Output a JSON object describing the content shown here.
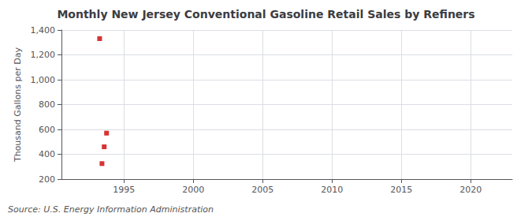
{
  "chart_data": {
    "type": "scatter",
    "title": "Monthly New Jersey Conventional Gasoline Retail Sales by Refiners",
    "ylabel": "Thousand Gallons per Day",
    "annotations": [
      "Source: U.S. Energy Information Administration"
    ],
    "x": [
      1993.25,
      1993.75,
      1993.58,
      1993.42
    ],
    "values": [
      1330,
      570,
      460,
      325
    ],
    "color": "#cc0000",
    "marker": "square",
    "xlim": [
      1990.5,
      2023
    ],
    "ylim": [
      200,
      1400
    ],
    "xticks": [
      1995,
      2000,
      2005,
      2010,
      2015,
      2020
    ],
    "yticks": [
      200,
      400,
      600,
      {
        "value": 1000,
        "label": "1,000"
      },
      {
        "value": 1200,
        "label": "1,200"
      },
      {
        "value": 1400,
        "label": "1,400"
      },
      800
    ],
    "grid": true
  }
}
